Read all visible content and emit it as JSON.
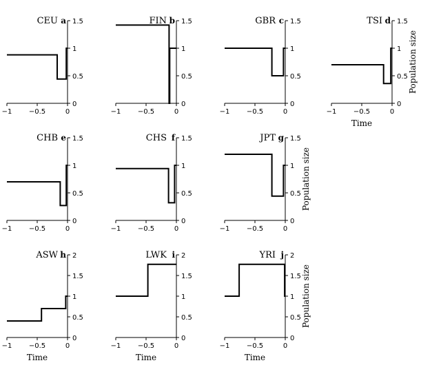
{
  "chart_data": [
    {
      "type": "line",
      "title": "CEU",
      "letter": "a",
      "ylim": [
        0,
        1.5
      ],
      "yticks": [
        "0",
        "0.5",
        "1",
        "1.5"
      ],
      "xlim": [
        -1,
        0
      ],
      "xticks": [
        "−1",
        "−0.5",
        "0"
      ],
      "xlabel": "",
      "ylabel": "",
      "x": [
        -1,
        -0.17,
        -0.17,
        -0.02,
        -0.02,
        0
      ],
      "y": [
        0.88,
        0.88,
        0.44,
        0.44,
        1.0,
        1.0
      ]
    },
    {
      "type": "line",
      "title": "FIN",
      "letter": "b",
      "ylim": [
        0,
        1.5
      ],
      "yticks": [
        "0",
        "0.5",
        "1",
        "1.5"
      ],
      "xlim": [
        -1,
        0
      ],
      "xticks": [
        "−1",
        "−0.5",
        "0"
      ],
      "xlabel": "",
      "ylabel": "",
      "x": [
        -1,
        -0.12,
        -0.12,
        -0.11,
        -0.11,
        0
      ],
      "y": [
        1.42,
        1.42,
        0.0,
        0.0,
        1.0,
        1.0
      ]
    },
    {
      "type": "line",
      "title": "GBR",
      "letter": "c",
      "ylim": [
        0,
        1.5
      ],
      "yticks": [
        "0",
        "0.5",
        "1",
        "1.5"
      ],
      "xlim": [
        -1,
        0
      ],
      "xticks": [
        "−1",
        "−0.5",
        "0"
      ],
      "xlabel": "",
      "ylabel": "",
      "x": [
        -1,
        -0.22,
        -0.22,
        -0.03,
        -0.03,
        0
      ],
      "y": [
        1.0,
        1.0,
        0.5,
        0.5,
        1.0,
        1.0
      ]
    },
    {
      "type": "line",
      "title": "TSI",
      "letter": "d",
      "ylim": [
        0,
        1.5
      ],
      "yticks": [
        "0",
        "0.5",
        "1",
        "1.5"
      ],
      "xlim": [
        -1,
        0
      ],
      "xticks": [
        "−1",
        "−0.5",
        "0"
      ],
      "xlabel": "Time",
      "ylabel": "Population size",
      "x": [
        -1,
        -0.14,
        -0.14,
        -0.02,
        -0.02,
        0
      ],
      "y": [
        0.7,
        0.7,
        0.36,
        0.36,
        1.0,
        1.0
      ]
    },
    {
      "type": "line",
      "title": "CHB",
      "letter": "e",
      "ylim": [
        0,
        1.5
      ],
      "yticks": [
        "0",
        "0.5",
        "1",
        "1.5"
      ],
      "xlim": [
        -1,
        0
      ],
      "xticks": [
        "−1",
        "−0.5",
        "0"
      ],
      "xlabel": "",
      "ylabel": "",
      "x": [
        -1,
        -0.12,
        -0.12,
        -0.02,
        -0.02,
        0
      ],
      "y": [
        0.7,
        0.7,
        0.27,
        0.27,
        1.0,
        1.0
      ]
    },
    {
      "type": "line",
      "title": "CHS",
      "letter": "f",
      "ylim": [
        0,
        1.5
      ],
      "yticks": [
        "0",
        "0.5",
        "1",
        "1.5"
      ],
      "xlim": [
        -1,
        0
      ],
      "xticks": [
        "−1",
        "−0.5",
        "0"
      ],
      "xlabel": "",
      "ylabel": "",
      "x": [
        -1,
        -0.13,
        -0.13,
        -0.03,
        -0.03,
        0
      ],
      "y": [
        0.94,
        0.94,
        0.32,
        0.32,
        1.0,
        1.0
      ]
    },
    {
      "type": "line",
      "title": "JPT",
      "letter": "g",
      "ylim": [
        0,
        1.5
      ],
      "yticks": [
        "0",
        "0.5",
        "1",
        "1.5"
      ],
      "xlim": [
        -1,
        0
      ],
      "xticks": [
        "−1",
        "−0.5",
        "0"
      ],
      "xlabel": "",
      "ylabel": "Population size",
      "x": [
        -1,
        -0.22,
        -0.22,
        -0.03,
        -0.03,
        0
      ],
      "y": [
        1.2,
        1.2,
        0.44,
        0.44,
        1.0,
        1.0
      ]
    },
    {
      "type": "line",
      "title": "ASW",
      "letter": "h",
      "ylim": [
        0,
        2
      ],
      "yticks": [
        "0",
        "0.5",
        "1",
        "1.5",
        "2"
      ],
      "xlim": [
        -1,
        0
      ],
      "xticks": [
        "−1",
        "−0.5",
        "0"
      ],
      "xlabel": "Time",
      "ylabel": "",
      "x": [
        -1,
        -0.43,
        -0.43,
        -0.03,
        -0.03,
        0
      ],
      "y": [
        0.4,
        0.4,
        0.7,
        0.7,
        1.0,
        1.0
      ]
    },
    {
      "type": "line",
      "title": "LWK",
      "letter": "i",
      "ylim": [
        0,
        2
      ],
      "yticks": [
        "0",
        "0.5",
        "1",
        "1.5",
        "2"
      ],
      "xlim": [
        -1,
        0
      ],
      "xticks": [
        "−1",
        "−0.5",
        "0"
      ],
      "xlabel": "Time",
      "ylabel": "",
      "x": [
        -1,
        -0.47,
        -0.47,
        0
      ],
      "y": [
        1.0,
        1.0,
        1.77,
        1.77
      ]
    },
    {
      "type": "line",
      "title": "YRI",
      "letter": "j",
      "ylim": [
        0,
        2
      ],
      "yticks": [
        "0",
        "0.5",
        "1",
        "1.5",
        "2"
      ],
      "xlim": [
        -1,
        0
      ],
      "xticks": [
        "−1",
        "−0.5",
        "0"
      ],
      "xlabel": "Time",
      "ylabel": "Population size",
      "x": [
        -1,
        -0.76,
        -0.76,
        -0.01,
        -0.01,
        0
      ],
      "y": [
        1.0,
        1.0,
        1.77,
        1.77,
        1.0,
        1.0
      ]
    }
  ]
}
